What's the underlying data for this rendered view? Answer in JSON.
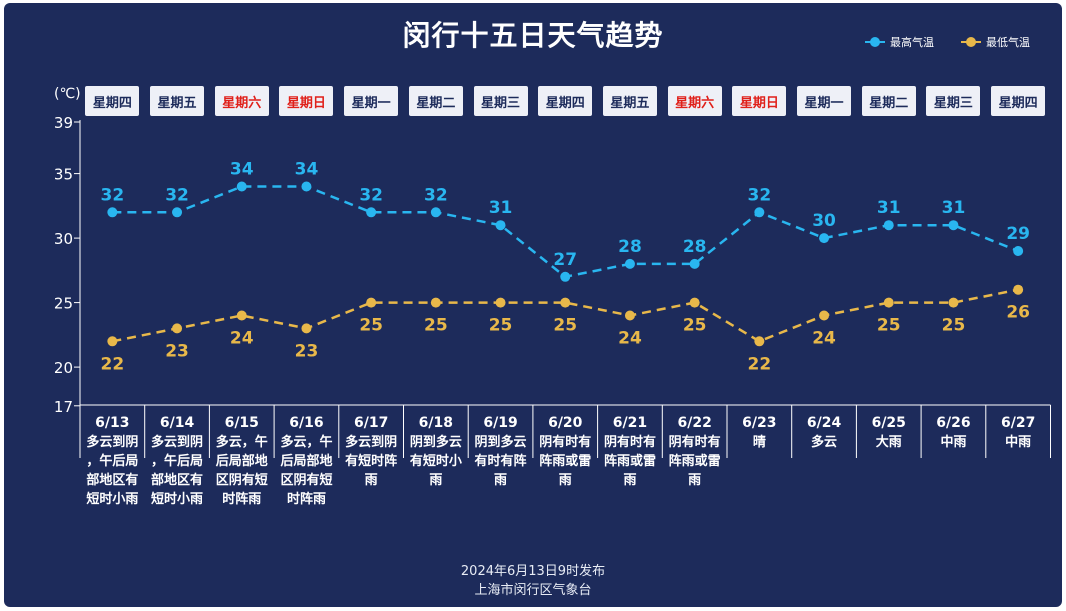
{
  "title": "闵行十五日天气趋势",
  "unit_label": "(℃)",
  "footer": {
    "issued": "2024年6月13日9时发布",
    "source": "上海市闵行区气象台"
  },
  "chart_data": {
    "type": "line",
    "title": "闵行十五日天气趋势",
    "ylabel": "(℃)",
    "ylim": [
      17,
      39
    ],
    "y_ticks": [
      17,
      20,
      25,
      30,
      35,
      39
    ],
    "legend_position": "top-right",
    "categories": [
      "6/13",
      "6/14",
      "6/15",
      "6/16",
      "6/17",
      "6/18",
      "6/19",
      "6/20",
      "6/21",
      "6/22",
      "6/23",
      "6/24",
      "6/25",
      "6/26",
      "6/27"
    ],
    "weekdays": [
      "星期四",
      "星期五",
      "星期六",
      "星期日",
      "星期一",
      "星期二",
      "星期三",
      "星期四",
      "星期五",
      "星期六",
      "星期日",
      "星期一",
      "星期二",
      "星期三",
      "星期四"
    ],
    "weekend_flags": [
      false,
      false,
      true,
      true,
      false,
      false,
      false,
      false,
      false,
      true,
      true,
      false,
      false,
      false,
      false
    ],
    "weather": [
      "多云到阴，午后局部地区有短时小雨",
      "多云到阴，午后局部地区有短时小雨",
      "多云，午后局部地区阴有短时阵雨",
      "多云，午后局部地区阴有短时阵雨",
      "多云到阴有短时阵雨",
      "阴到多云有短时小雨",
      "阴到多云有时有阵雨",
      "阴有时有阵雨或雷雨",
      "阴有时有阵雨或雷雨",
      "阴有时有阵雨或雷雨",
      "晴",
      "多云",
      "大雨",
      "中雨",
      "中雨"
    ],
    "series": [
      {
        "name": "最高气温",
        "color": "#29b6f0",
        "values": [
          32,
          32,
          34,
          34,
          32,
          32,
          31,
          27,
          28,
          28,
          32,
          30,
          31,
          31,
          29
        ]
      },
      {
        "name": "最低气温",
        "color": "#e8b84a",
        "values": [
          22,
          23,
          24,
          23,
          25,
          25,
          25,
          25,
          24,
          25,
          22,
          24,
          25,
          25,
          26
        ]
      }
    ]
  }
}
